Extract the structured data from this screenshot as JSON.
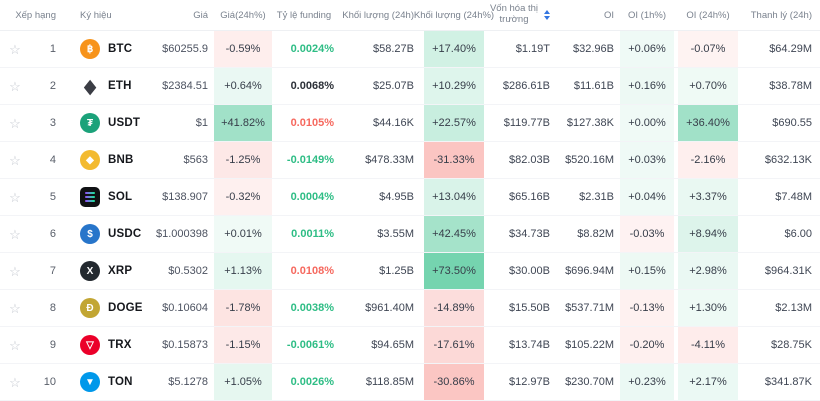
{
  "columns": [
    {
      "id": "fav",
      "label": ""
    },
    {
      "id": "rank",
      "label": "Xếp hạng"
    },
    {
      "id": "symbol",
      "label": "Ký hiệu"
    },
    {
      "id": "price",
      "label": "Giá"
    },
    {
      "id": "chg24",
      "label": "Giá(24h%)"
    },
    {
      "id": "funding",
      "label": "Tỷ lệ funding"
    },
    {
      "id": "vol",
      "label": "Khối lượng (24h)"
    },
    {
      "id": "vol24",
      "label": "Khối lượng (24h%)"
    },
    {
      "id": "mcap",
      "label": "Vốn hóa thị trường"
    },
    {
      "id": "oi",
      "label": "OI"
    },
    {
      "id": "oi1h",
      "label": "OI (1h%)"
    },
    {
      "id": "oi24",
      "label": "OI (24h%)"
    },
    {
      "id": "liq",
      "label": "Thanh lý (24h)"
    }
  ],
  "icons": {
    "favorite_star": "☆"
  },
  "colors": {
    "positive_rgb": "46,189,133",
    "negative_rgb": "242,84,75",
    "funding_up": "#2ebd85",
    "funding_down": "#f6685e",
    "funding_neutral": "#2c3038",
    "header_text": "#7a828e",
    "sort_icon": "#3375e0",
    "star": "#c4c8d0",
    "sol_bar_gradient": [
      "#9945ff",
      "#14f195"
    ]
  },
  "rows": [
    {
      "rank": "1",
      "symbol": "BTC",
      "icon": {
        "name": "btc-icon",
        "shape": "circle",
        "bg": "#f7931a",
        "fg": "#ffffff",
        "glyph": "฿"
      },
      "price": "$60255.9",
      "chg24": "-0.59%",
      "funding": "0.0024%",
      "funding_trend": "up",
      "vol": "$58.27B",
      "vol24": "+17.40%",
      "mcap": "$1.19T",
      "oi": "$32.96B",
      "oi1h": "+0.06%",
      "oi24": "-0.07%",
      "liq": "$64.29M"
    },
    {
      "rank": "2",
      "symbol": "ETH",
      "icon": {
        "name": "eth-icon",
        "shape": "diamond",
        "bg": "transparent",
        "fg": "#3b3d45",
        "glyph": "◆"
      },
      "price": "$2384.51",
      "chg24": "+0.64%",
      "funding": "0.0068%",
      "funding_trend": "neutral",
      "vol": "$25.07B",
      "vol24": "+10.29%",
      "mcap": "$286.61B",
      "oi": "$11.61B",
      "oi1h": "+0.16%",
      "oi24": "+0.70%",
      "liq": "$38.78M"
    },
    {
      "rank": "3",
      "symbol": "USDT",
      "icon": {
        "name": "usdt-icon",
        "shape": "circle",
        "bg": "#1ba27a",
        "fg": "#ffffff",
        "glyph": "₮"
      },
      "price": "$1",
      "chg24": "+41.82%",
      "funding": "0.0105%",
      "funding_trend": "down",
      "vol": "$44.16K",
      "vol24": "+22.57%",
      "mcap": "$119.77B",
      "oi": "$127.38K",
      "oi1h": "+0.00%",
      "oi24": "+36.40%",
      "liq": "$690.55"
    },
    {
      "rank": "4",
      "symbol": "BNB",
      "icon": {
        "name": "bnb-icon",
        "shape": "circle",
        "bg": "#f3ba2f",
        "fg": "#ffffff",
        "glyph": "◆"
      },
      "price": "$563",
      "chg24": "-1.25%",
      "funding": "-0.0149%",
      "funding_trend": "up",
      "vol": "$478.33M",
      "vol24": "-31.33%",
      "mcap": "$82.03B",
      "oi": "$520.16M",
      "oi1h": "+0.03%",
      "oi24": "-2.16%",
      "liq": "$632.13K"
    },
    {
      "rank": "5",
      "symbol": "SOL",
      "icon": {
        "name": "sol-icon",
        "shape": "square",
        "bg": "#101114",
        "fg": "#ffffff",
        "glyph": ""
      },
      "price": "$138.907",
      "chg24": "-0.32%",
      "funding": "0.0004%",
      "funding_trend": "up",
      "vol": "$4.95B",
      "vol24": "+13.04%",
      "mcap": "$65.16B",
      "oi": "$2.31B",
      "oi1h": "+0.04%",
      "oi24": "+3.37%",
      "liq": "$7.48M"
    },
    {
      "rank": "6",
      "symbol": "USDC",
      "icon": {
        "name": "usdc-icon",
        "shape": "circle",
        "bg": "#2775ca",
        "fg": "#ffffff",
        "glyph": "$"
      },
      "price": "$1.000398",
      "chg24": "+0.01%",
      "funding": "0.0011%",
      "funding_trend": "up",
      "vol": "$3.55M",
      "vol24": "+42.45%",
      "mcap": "$34.73B",
      "oi": "$8.82M",
      "oi1h": "-0.03%",
      "oi24": "+8.94%",
      "liq": "$6.00"
    },
    {
      "rank": "7",
      "symbol": "XRP",
      "icon": {
        "name": "xrp-icon",
        "shape": "circle",
        "bg": "#23292f",
        "fg": "#ffffff",
        "glyph": "X"
      },
      "price": "$0.5302",
      "chg24": "+1.13%",
      "funding": "0.0108%",
      "funding_trend": "down",
      "vol": "$1.25B",
      "vol24": "+73.50%",
      "mcap": "$30.00B",
      "oi": "$696.94M",
      "oi1h": "+0.15%",
      "oi24": "+2.98%",
      "liq": "$964.31K"
    },
    {
      "rank": "8",
      "symbol": "DOGE",
      "icon": {
        "name": "doge-icon",
        "shape": "circle",
        "bg": "#c2a633",
        "fg": "#ffffff",
        "glyph": "Ð"
      },
      "price": "$0.10604",
      "chg24": "-1.78%",
      "funding": "0.0038%",
      "funding_trend": "up",
      "vol": "$961.40M",
      "vol24": "-14.89%",
      "mcap": "$15.50B",
      "oi": "$537.71M",
      "oi1h": "-0.13%",
      "oi24": "+1.30%",
      "liq": "$2.13M"
    },
    {
      "rank": "9",
      "symbol": "TRX",
      "icon": {
        "name": "trx-icon",
        "shape": "circle",
        "bg": "#eb0029",
        "fg": "#ffffff",
        "glyph": "▽"
      },
      "price": "$0.15873",
      "chg24": "-1.15%",
      "funding": "-0.0061%",
      "funding_trend": "up",
      "vol": "$94.65M",
      "vol24": "-17.61%",
      "mcap": "$13.74B",
      "oi": "$105.22M",
      "oi1h": "-0.20%",
      "oi24": "-4.11%",
      "liq": "$28.75K"
    },
    {
      "rank": "10",
      "symbol": "TON",
      "icon": {
        "name": "ton-icon",
        "shape": "circle",
        "bg": "#0098ea",
        "fg": "#ffffff",
        "glyph": "▼"
      },
      "price": "$5.1278",
      "chg24": "+1.05%",
      "funding": "0.0026%",
      "funding_trend": "up",
      "vol": "$118.85M",
      "vol24": "-30.86%",
      "mcap": "$12.97B",
      "oi": "$230.70M",
      "oi1h": "+0.23%",
      "oi24": "+2.17%",
      "liq": "$341.87K"
    }
  ]
}
